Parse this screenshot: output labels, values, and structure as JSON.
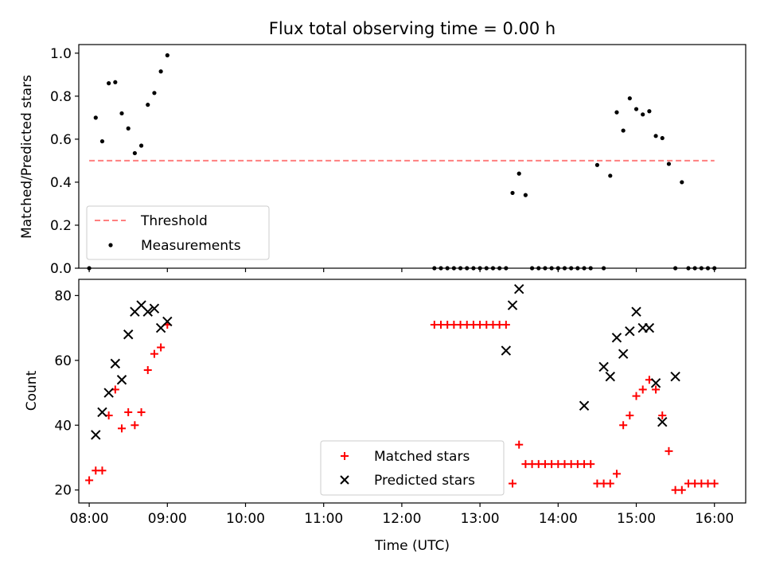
{
  "chart_data": {
    "title": "Flux total observing time = 0.00 h",
    "xlabel": "Time (UTC)",
    "xticks": [
      "08:00",
      "09:00",
      "10:00",
      "11:00",
      "12:00",
      "13:00",
      "14:00",
      "15:00",
      "16:00"
    ],
    "xlim": [
      "07:52",
      "16:24"
    ],
    "panels": [
      {
        "type": "scatter",
        "ylabel": "Matched/Predicted stars",
        "ylim": [
          0.0,
          1.04
        ],
        "yticks": [
          "0.0",
          "0.2",
          "0.4",
          "0.6",
          "0.8",
          "1.0"
        ],
        "legend_position": "lower-left",
        "series": [
          {
            "name": "Threshold",
            "kind": "line",
            "style": "dashed",
            "color": "#ff7f7f",
            "x": [
              "08:00",
              "16:00"
            ],
            "y": [
              0.5,
              0.5
            ]
          },
          {
            "name": "Measurements",
            "kind": "scatter",
            "marker": "dot",
            "color": "#000000",
            "x": [
              "08:00",
              "08:05",
              "08:10",
              "08:15",
              "08:20",
              "08:25",
              "08:30",
              "08:35",
              "08:40",
              "08:45",
              "08:50",
              "08:55",
              "09:00",
              "12:25",
              "12:30",
              "12:35",
              "12:40",
              "12:45",
              "12:50",
              "12:55",
              "13:00",
              "13:05",
              "13:10",
              "13:15",
              "13:20",
              "13:25",
              "13:30",
              "13:35",
              "13:40",
              "13:45",
              "13:50",
              "13:55",
              "14:00",
              "14:05",
              "14:10",
              "14:15",
              "14:20",
              "14:25",
              "14:30",
              "14:35",
              "14:40",
              "14:45",
              "14:50",
              "14:55",
              "15:00",
              "15:05",
              "15:10",
              "15:15",
              "15:20",
              "15:25",
              "15:30",
              "15:35",
              "15:40",
              "15:45",
              "15:50",
              "15:55",
              "16:00"
            ],
            "y": [
              0.0,
              0.7,
              0.59,
              0.86,
              0.865,
              0.72,
              0.65,
              0.535,
              0.57,
              0.76,
              0.815,
              0.915,
              0.99,
              0.0,
              0.0,
              0.0,
              0.0,
              0.0,
              0.0,
              0.0,
              0.0,
              0.0,
              0.0,
              0.0,
              0.0,
              0.35,
              0.44,
              0.34,
              0.0,
              0.0,
              0.0,
              0.0,
              0.0,
              0.0,
              0.0,
              0.0,
              0.0,
              0.0,
              0.48,
              0.0,
              0.43,
              0.725,
              0.64,
              0.79,
              0.74,
              0.715,
              0.73,
              0.615,
              0.605,
              0.485,
              0.0,
              0.4,
              0.0,
              0.0,
              0.0,
              0.0,
              0.0
            ]
          }
        ]
      },
      {
        "type": "scatter",
        "ylabel": "Count",
        "ylim": [
          16,
          85
        ],
        "yticks": [
          "20",
          "40",
          "60",
          "80"
        ],
        "legend_position": "lower-center",
        "series": [
          {
            "name": "Matched stars",
            "kind": "scatter",
            "marker": "plus",
            "color": "#ff0000",
            "x": [
              "08:00",
              "08:05",
              "08:10",
              "08:15",
              "08:20",
              "08:25",
              "08:30",
              "08:35",
              "08:40",
              "08:45",
              "08:50",
              "08:55",
              "09:00",
              "12:25",
              "12:30",
              "12:35",
              "12:40",
              "12:45",
              "12:50",
              "12:55",
              "13:00",
              "13:05",
              "13:10",
              "13:15",
              "13:20",
              "13:25",
              "13:30",
              "13:35",
              "13:40",
              "13:45",
              "13:50",
              "13:55",
              "14:00",
              "14:05",
              "14:10",
              "14:15",
              "14:20",
              "14:25",
              "14:30",
              "14:35",
              "14:40",
              "14:45",
              "14:50",
              "14:55",
              "15:00",
              "15:05",
              "15:10",
              "15:15",
              "15:20",
              "15:25",
              "15:30",
              "15:35",
              "15:40",
              "15:45",
              "15:50",
              "15:55",
              "16:00"
            ],
            "y": [
              23,
              26,
              26,
              43,
              51,
              39,
              44,
              40,
              44,
              57,
              62,
              64,
              71,
              71,
              71,
              71,
              71,
              71,
              71,
              71,
              71,
              71,
              71,
              71,
              71,
              22,
              34,
              28,
              28,
              28,
              28,
              28,
              28,
              28,
              28,
              28,
              28,
              28,
              22,
              22,
              22,
              25,
              40,
              43,
              49,
              51,
              54,
              51,
              43,
              32,
              20,
              20,
              22,
              22,
              22,
              22,
              22
            ]
          },
          {
            "name": "Predicted stars",
            "kind": "scatter",
            "marker": "x",
            "color": "#000000",
            "x": [
              "08:05",
              "08:10",
              "08:15",
              "08:20",
              "08:25",
              "08:30",
              "08:35",
              "08:40",
              "08:45",
              "08:50",
              "08:55",
              "09:00",
              "13:20",
              "13:25",
              "13:30",
              "14:20",
              "14:35",
              "14:40",
              "14:45",
              "14:50",
              "14:55",
              "15:00",
              "15:05",
              "15:10",
              "15:15",
              "15:20",
              "15:30"
            ],
            "y": [
              37,
              44,
              50,
              59,
              54,
              68,
              75,
              77,
              75,
              76,
              70,
              72,
              63,
              77,
              82,
              46,
              58,
              55,
              67,
              62,
              69,
              75,
              70,
              70,
              53,
              41,
              55
            ]
          }
        ]
      }
    ]
  }
}
